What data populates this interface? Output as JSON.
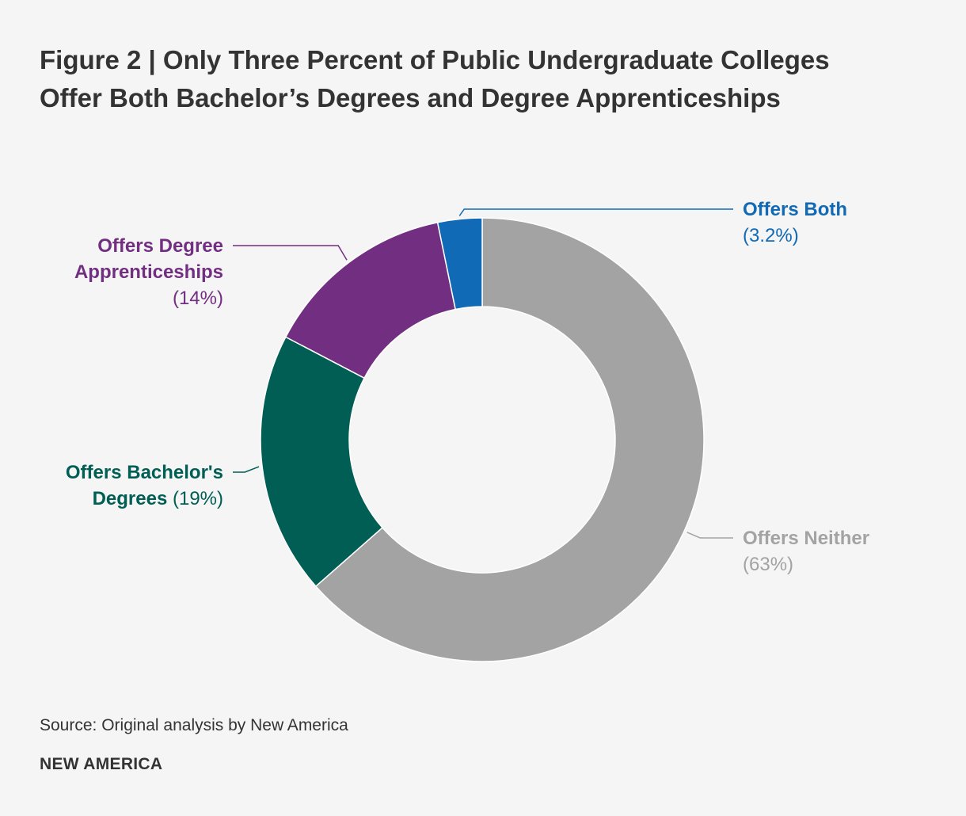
{
  "title": "Figure 2 | Only Three Percent of Public Undergraduate Colleges Offer Both Bachelor’s Degrees and Degree Apprenticeships",
  "source": "Source: Original analysis by New America",
  "brand": "NEW AMERICA",
  "chart_data": {
    "type": "pie",
    "style": "donut",
    "title": "Figure 2 | Only Three Percent of Public Undergraduate Colleges Offer Both Bachelor’s Degrees and Degree Apprenticeships",
    "legend": "none",
    "slices": [
      {
        "name": "Offers Neither",
        "value": 63,
        "label_lines": [
          "Offers Neither"
        ],
        "value_label": "(63%)",
        "color": "#a3a3a3"
      },
      {
        "name": "Offers Bachelor's Degrees",
        "value": 19,
        "label_lines": [
          "Offers Bachelor's",
          "Degrees"
        ],
        "value_label": "(19%)",
        "color": "#005e55"
      },
      {
        "name": "Offers Degree Apprenticeships",
        "value": 14,
        "label_lines": [
          "Offers Degree",
          "Apprenticeships"
        ],
        "value_label": "(14%)",
        "color": "#722f82"
      },
      {
        "name": "Offers Both",
        "value": 3.2,
        "label_lines": [
          "Offers Both"
        ],
        "value_label": "(3.2%)",
        "color": "#106ab5"
      }
    ]
  }
}
